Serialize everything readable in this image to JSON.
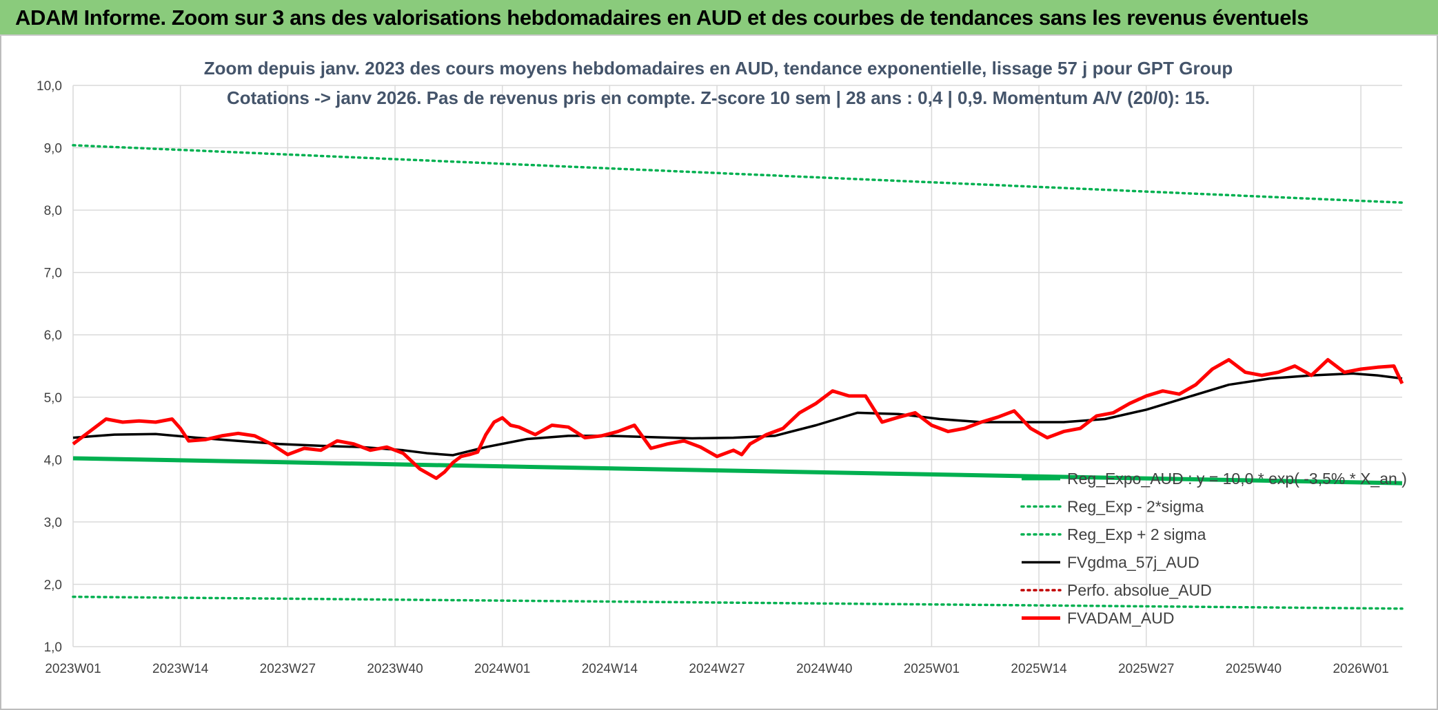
{
  "banner": {
    "title": "ADAM Informe. Zoom sur 3 ans des valorisations hebdomadaires en AUD et des courbes de tendances sans les revenus éventuels"
  },
  "chart_data": {
    "type": "line",
    "title_lines": [
      "Zoom depuis janv. 2023 des cours moyens hebdomadaires en AUD, tendance exponentielle, lissage 57 j pour GPT Group",
      "Cotations -> janv 2026. Pas de revenus pris en compte. Z-score 10 sem | 28 ans : 0,4 | 0,9. Momentum A/V (20/0): 15."
    ],
    "ylim": [
      1.0,
      10.0
    ],
    "y_ticks": [
      "1,0",
      "2,0",
      "3,0",
      "4,0",
      "5,0",
      "6,0",
      "7,0",
      "8,0",
      "9,0",
      "10,0"
    ],
    "x_ticks": [
      "2023W01",
      "2023W14",
      "2023W27",
      "2023W40",
      "2024W01",
      "2024W14",
      "2024W27",
      "2024W40",
      "2025W01",
      "2025W14",
      "2025W27",
      "2025W40",
      "2026W01"
    ],
    "x_range_weeks": [
      0,
      161
    ],
    "grid": true,
    "legend_position": "bottom-right, inside plot",
    "series": [
      {
        "name": "Reg_Expo_AUD : y = 10,0 * exp( -3,5% * X_an )",
        "color": "#00b050",
        "style": "solid-thick",
        "x": [
          0,
          161
        ],
        "y": [
          4.02,
          3.62
        ]
      },
      {
        "name": "Reg_Exp - 2*sigma",
        "color": "#00b050",
        "style": "dotted",
        "x": [
          0,
          161
        ],
        "y": [
          1.8,
          1.61
        ]
      },
      {
        "name": "Reg_Exp + 2 sigma",
        "color": "#00b050",
        "style": "dotted",
        "x": [
          0,
          161
        ],
        "y": [
          9.04,
          8.12
        ]
      },
      {
        "name": "FVgdma_57j_AUD",
        "color": "#000000",
        "style": "solid",
        "x": [
          0,
          5,
          10,
          15,
          20,
          25,
          30,
          35,
          40,
          43,
          46,
          50,
          55,
          60,
          65,
          70,
          75,
          80,
          85,
          90,
          95,
          100,
          105,
          110,
          115,
          120,
          125,
          130,
          135,
          140,
          145,
          150,
          155,
          158,
          161
        ],
        "y": [
          4.35,
          4.4,
          4.41,
          4.35,
          4.3,
          4.25,
          4.22,
          4.2,
          4.15,
          4.1,
          4.07,
          4.2,
          4.33,
          4.38,
          4.38,
          4.36,
          4.34,
          4.35,
          4.38,
          4.55,
          4.75,
          4.73,
          4.65,
          4.6,
          4.6,
          4.6,
          4.65,
          4.8,
          5.0,
          5.2,
          5.3,
          5.35,
          5.38,
          5.35,
          5.3
        ]
      },
      {
        "name": "Perfo. absolue_AUD",
        "color": "#c00000",
        "style": "dotted",
        "x": [],
        "y": []
      },
      {
        "name": "FVADAM_AUD",
        "color": "#ff0000",
        "style": "solid-thick",
        "x": [
          0,
          2,
          4,
          6,
          8,
          10,
          12,
          13,
          14,
          16,
          18,
          20,
          22,
          24,
          26,
          28,
          30,
          32,
          34,
          36,
          38,
          40,
          42,
          44,
          45,
          46,
          47,
          48,
          49,
          50,
          51,
          52,
          53,
          54,
          56,
          58,
          60,
          62,
          64,
          66,
          68,
          70,
          72,
          74,
          76,
          78,
          80,
          81,
          82,
          84,
          86,
          88,
          90,
          92,
          94,
          96,
          98,
          100,
          102,
          104,
          106,
          108,
          110,
          112,
          114,
          116,
          118,
          120,
          122,
          124,
          126,
          128,
          130,
          132,
          134,
          136,
          138,
          140,
          142,
          144,
          146,
          148,
          150,
          152,
          154,
          156,
          158,
          160,
          161
        ],
        "y": [
          4.25,
          4.45,
          4.65,
          4.6,
          4.62,
          4.6,
          4.65,
          4.5,
          4.3,
          4.32,
          4.38,
          4.42,
          4.38,
          4.25,
          4.08,
          4.18,
          4.15,
          4.3,
          4.25,
          4.15,
          4.2,
          4.1,
          3.85,
          3.7,
          3.8,
          3.95,
          4.05,
          4.08,
          4.12,
          4.4,
          4.6,
          4.67,
          4.55,
          4.52,
          4.4,
          4.55,
          4.52,
          4.35,
          4.38,
          4.45,
          4.55,
          4.18,
          4.25,
          4.3,
          4.2,
          4.05,
          4.15,
          4.08,
          4.25,
          4.4,
          4.5,
          4.75,
          4.9,
          5.1,
          5.02,
          5.02,
          4.6,
          4.68,
          4.75,
          4.55,
          4.45,
          4.5,
          4.6,
          4.68,
          4.78,
          4.5,
          4.35,
          4.45,
          4.5,
          4.7,
          4.75,
          4.9,
          5.02,
          5.1,
          5.05,
          5.2,
          5.45,
          5.6,
          5.4,
          5.35,
          5.4,
          5.5,
          5.35,
          5.6,
          5.4,
          5.45,
          5.48,
          5.5,
          5.22
        ]
      }
    ]
  }
}
